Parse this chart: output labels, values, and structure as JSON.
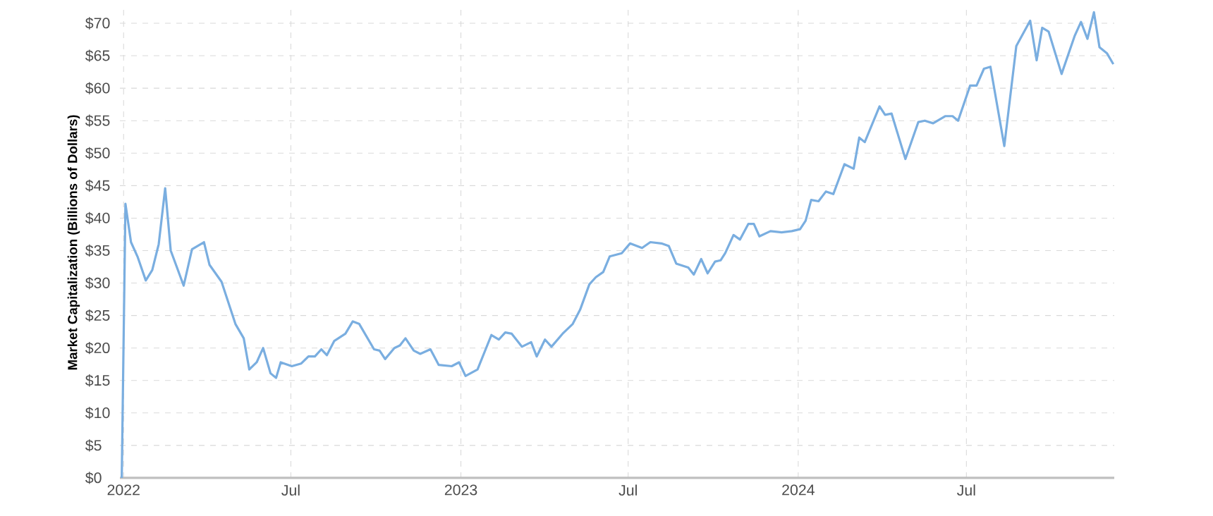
{
  "chart_data": {
    "type": "line",
    "ylabel": "Market Capitalization (Billions of Dollars)",
    "x": [
      "2021-12-30",
      "2022-01-03",
      "2022-01-09",
      "2022-01-16",
      "2022-01-25",
      "2022-02-01",
      "2022-02-08",
      "2022-02-15",
      "2022-02-21",
      "2022-03-07",
      "2022-03-16",
      "2022-03-29",
      "2022-04-04",
      "2022-04-17",
      "2022-05-02",
      "2022-05-11",
      "2022-05-17",
      "2022-05-25",
      "2022-06-01",
      "2022-06-09",
      "2022-06-15",
      "2022-06-20",
      "2022-07-02",
      "2022-07-12",
      "2022-07-20",
      "2022-07-27",
      "2022-08-03",
      "2022-08-09",
      "2022-08-17",
      "2022-08-29",
      "2022-09-06",
      "2022-09-13",
      "2022-09-29",
      "2022-10-05",
      "2022-10-11",
      "2022-10-21",
      "2022-10-27",
      "2022-11-02",
      "2022-11-11",
      "2022-11-18",
      "2022-11-29",
      "2022-12-08",
      "2022-12-22",
      "2022-12-30",
      "2023-01-06",
      "2023-01-19",
      "2023-02-03",
      "2023-02-11",
      "2023-02-18",
      "2023-02-25",
      "2023-03-08",
      "2023-03-18",
      "2023-03-24",
      "2023-04-02",
      "2023-04-09",
      "2023-04-21",
      "2023-05-02",
      "2023-05-10",
      "2023-05-20",
      "2023-05-27",
      "2023-06-04",
      "2023-06-11",
      "2023-06-24",
      "2023-07-03",
      "2023-07-16",
      "2023-07-25",
      "2023-08-06",
      "2023-08-14",
      "2023-08-22",
      "2023-09-04",
      "2023-09-10",
      "2023-09-18",
      "2023-09-25",
      "2023-10-03",
      "2023-10-09",
      "2023-10-14",
      "2023-10-23",
      "2023-10-30",
      "2023-11-08",
      "2023-11-14",
      "2023-11-20",
      "2023-12-02",
      "2023-12-14",
      "2023-12-25",
      "2024-01-03",
      "2024-01-09",
      "2024-01-15",
      "2024-01-23",
      "2024-01-31",
      "2024-02-08",
      "2024-02-20",
      "2024-03-01",
      "2024-03-07",
      "2024-03-13",
      "2024-03-29",
      "2024-04-04",
      "2024-04-11",
      "2024-04-26",
      "2024-05-10",
      "2024-05-17",
      "2024-05-26",
      "2024-06-08",
      "2024-06-16",
      "2024-06-22",
      "2024-07-05",
      "2024-07-12",
      "2024-07-20",
      "2024-07-27",
      "2024-08-11",
      "2024-08-24",
      "2024-09-08",
      "2024-09-15",
      "2024-09-21",
      "2024-09-28",
      "2024-10-12",
      "2024-10-26",
      "2024-11-02",
      "2024-11-09",
      "2024-11-16",
      "2024-11-22",
      "2024-11-30",
      "2024-12-07"
    ],
    "series": [
      {
        "color": "#7aaee0",
        "values": [
          0,
          42.2,
          36.3,
          34.1,
          30.4,
          32,
          36,
          44.6,
          35,
          29.6,
          35.2,
          36.3,
          32.8,
          30.2,
          23.7,
          21.5,
          16.7,
          17.8,
          20,
          16.1,
          15.4,
          17.8,
          17.2,
          17.6,
          18.7,
          18.7,
          19.8,
          18.9,
          21.1,
          22.2,
          24.1,
          23.7,
          19.8,
          19.6,
          18.3,
          20,
          20.4,
          21.5,
          19.6,
          19.1,
          19.8,
          17.4,
          17.2,
          17.8,
          15.7,
          16.7,
          22,
          21.3,
          22.4,
          22.2,
          20.2,
          20.9,
          18.7,
          21.3,
          20.2,
          22.2,
          23.7,
          25.9,
          29.8,
          30.9,
          31.7,
          34.1,
          34.6,
          36.1,
          35.4,
          36.3,
          36.1,
          35.7,
          33,
          32.4,
          31.3,
          33.7,
          31.5,
          33.3,
          33.5,
          34.6,
          37.4,
          36.7,
          39.1,
          39.1,
          37.2,
          38,
          37.8,
          38,
          38.3,
          39.6,
          42.8,
          42.6,
          44.1,
          43.7,
          48.3,
          47.6,
          52.4,
          51.7,
          57.2,
          55.9,
          56.1,
          49.1,
          54.8,
          55,
          54.6,
          55.7,
          55.7,
          55,
          60.4,
          60.4,
          63,
          63.3,
          51.1,
          66.5,
          70.4,
          64.3,
          69.3,
          68.7,
          62.2,
          68,
          70.2,
          67.6,
          71.7,
          66.3,
          65.4,
          63.7
        ]
      }
    ],
    "xlim": [
      "2021-12-28",
      "2024-12-08"
    ],
    "xticks": [
      {
        "value": "2022-01-01",
        "label": "2022"
      },
      {
        "value": "2022-07-01",
        "label": "Jul"
      },
      {
        "value": "2023-01-01",
        "label": "2023"
      },
      {
        "value": "2023-07-01",
        "label": "Jul"
      },
      {
        "value": "2024-01-01",
        "label": "2024"
      },
      {
        "value": "2024-07-01",
        "label": "Jul"
      }
    ],
    "ylim": [
      0,
      72.5
    ],
    "yticks": [
      {
        "value": 0,
        "label": "$0"
      },
      {
        "value": 5,
        "label": "$5"
      },
      {
        "value": 10,
        "label": "$10"
      },
      {
        "value": 15,
        "label": "$15"
      },
      {
        "value": 20,
        "label": "$20"
      },
      {
        "value": 25,
        "label": "$25"
      },
      {
        "value": 30,
        "label": "$30"
      },
      {
        "value": 35,
        "label": "$35"
      },
      {
        "value": 40,
        "label": "$40"
      },
      {
        "value": 45,
        "label": "$45"
      },
      {
        "value": 50,
        "label": "$50"
      },
      {
        "value": 55,
        "label": "$55"
      },
      {
        "value": 60,
        "label": "$60"
      },
      {
        "value": 65,
        "label": "$65"
      },
      {
        "value": 70,
        "label": "$70"
      }
    ],
    "grid": true,
    "marker": "none",
    "line_style": "solid"
  }
}
